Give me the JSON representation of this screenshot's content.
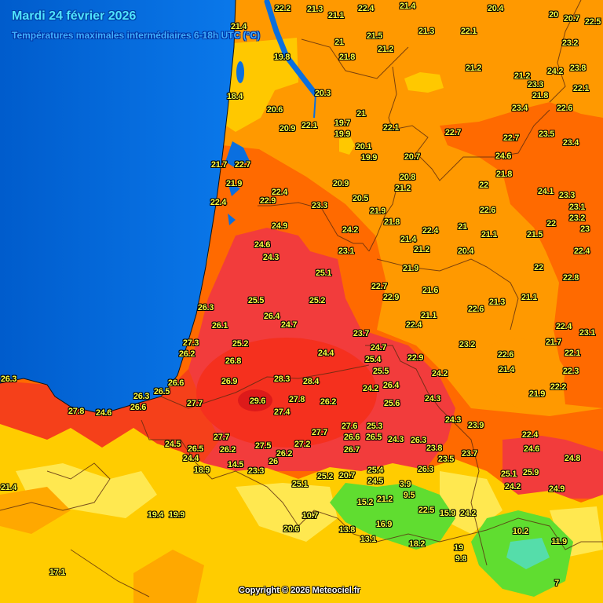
{
  "header": {
    "title": "Mardi 24 février 2026",
    "subtitle": "Températures maximales intermédiaires 6-18h UTC (°C)"
  },
  "footer": {
    "copyright": "Copyright © 2026 Meteociel.fr"
  },
  "colors": {
    "sea": "#0a6fe0",
    "temp_18_20": "#ffcc00",
    "temp_20_22": "#ff9900",
    "temp_22_24": "#ff6a00",
    "temp_24_26": "#f23c3c",
    "temp_26_28": "#f5301e",
    "temp_28_30": "#dd1a1a",
    "temp_low_mountain": "#55dd33",
    "label_text": "#ffff40"
  },
  "labels": [
    "22.2",
    "21.4",
    "19.8",
    "18.4",
    "20.6",
    "20.9",
    "22.1",
    "21.7",
    "22.7",
    "21.9",
    "22.4",
    "22.4",
    "22.9",
    "21.3",
    "21.1",
    "22.4",
    "21.4",
    "20.4",
    "20",
    "20.7",
    "22.5",
    "21.3",
    "22.1",
    "21",
    "21.5",
    "21.2",
    "21.8",
    "21.2",
    "21.2",
    "24.2",
    "23.8",
    "20.3",
    "23.3",
    "21.8",
    "22.1",
    "23.2",
    "21",
    "23.4",
    "22.6",
    "19.7",
    "19.9",
    "22.1",
    "22.7",
    "22.7",
    "23.5",
    "23.4",
    "20.1",
    "19.9",
    "20.7",
    "24.6",
    "21.8",
    "22",
    "24.1",
    "23.3",
    "20.9",
    "20.8",
    "21.2",
    "20.5",
    "23.3",
    "21.9",
    "21.8",
    "24.9",
    "24.2",
    "24.6",
    "24.3",
    "23.1",
    "25.1",
    "22.7",
    "26.3",
    "25.5",
    "25.2",
    "26.4",
    "24.7",
    "26.1",
    "23.7",
    "22.6",
    "21",
    "21.1",
    "22.4",
    "21.4",
    "21.2",
    "20.4",
    "21.9",
    "21.6",
    "21.1",
    "22.4",
    "22.9",
    "21.3",
    "22.6",
    "21.5",
    "22",
    "23.1",
    "23.2",
    "23",
    "22.4",
    "22",
    "22.8",
    "21.1",
    "21.7",
    "22.4",
    "23.1",
    "25.2",
    "26.8",
    "26.9",
    "24.4",
    "25.5",
    "24.7",
    "25.4",
    "28.3",
    "28.4",
    "24.2",
    "26.4",
    "29.6",
    "27.8",
    "26.2",
    "25.6",
    "27.4",
    "27.6",
    "25.3",
    "26.6",
    "26.5",
    "24.3",
    "27.7",
    "27.2",
    "26.2",
    "27.5",
    "26.2",
    "26.7",
    "14.5",
    "23.3",
    "26",
    "25.2",
    "20.7",
    "25.4",
    "24.5",
    "25.1",
    "27.3",
    "26.2",
    "26.3",
    "26.6",
    "26.5",
    "26.3",
    "26.6",
    "27.8",
    "24.6",
    "27.7",
    "24.5",
    "26.5",
    "27.7",
    "24.4",
    "18.9",
    "23.2",
    "22.6",
    "22.9",
    "21.4",
    "24.2",
    "21.7",
    "22.1",
    "22.3",
    "22.2",
    "21.9",
    "24.3",
    "24.3",
    "23.9",
    "22.4",
    "26.3",
    "23.8",
    "23.5",
    "23.7",
    "24.6",
    "24.8",
    "26.3",
    "25.1",
    "25.9",
    "24.2",
    "24.9",
    "21.4",
    "19.4",
    "19.9",
    "17.1",
    "20.6",
    "10.7",
    "3.9",
    "9.5",
    "15.2",
    "21.2",
    "13.8",
    "16.9",
    "13.1",
    "22.5",
    "15.9",
    "24.2",
    "18.2",
    "10.2",
    "11.9",
    "19",
    "9.8",
    "7"
  ]
}
